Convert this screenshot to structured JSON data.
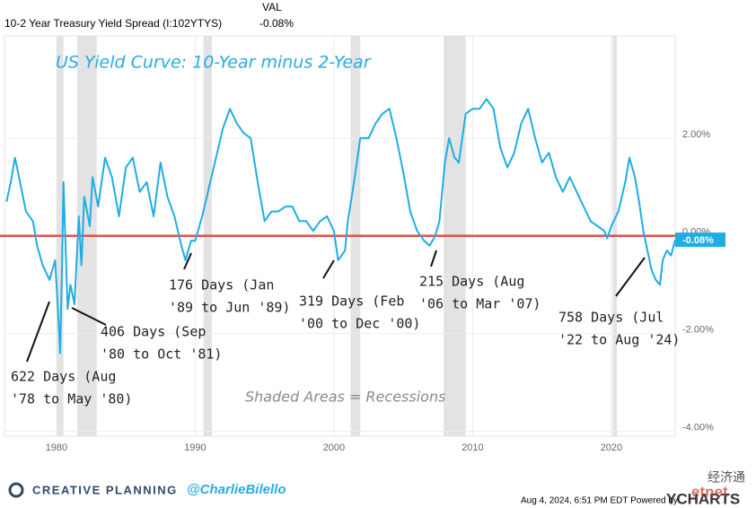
{
  "header": {
    "series_label": "10-2 Year Treasury Yield Spread (I:102YTYS)",
    "val_heading": "VAL",
    "val": "-0.08%"
  },
  "chart_data": {
    "type": "line",
    "title": "US Yield Curve: 10-Year minus 2-Year",
    "note": "Shaded Areas = Recessions",
    "x": [
      1976.4,
      1976.7,
      1977.0,
      1977.3,
      1977.8,
      1978.3,
      1978.6,
      1979.0,
      1979.5,
      1979.9,
      1980.1,
      1980.26,
      1980.4,
      1980.5,
      1980.8,
      1981.0,
      1981.3,
      1981.6,
      1981.8,
      1982.0,
      1982.4,
      1982.6,
      1983.0,
      1983.5,
      1984.0,
      1984.5,
      1985.0,
      1985.5,
      1986.0,
      1986.5,
      1987.0,
      1987.5,
      1988.0,
      1988.5,
      1989.0,
      1989.3,
      1989.7,
      1990.0,
      1990.5,
      1991.0,
      1991.5,
      1992.0,
      1992.5,
      1993.0,
      1993.5,
      1994.0,
      1994.5,
      1995.0,
      1995.5,
      1996.0,
      1996.5,
      1997.0,
      1997.5,
      1998.0,
      1998.5,
      1999.0,
      1999.5,
      2000.0,
      2000.3,
      2000.8,
      2001.0,
      2001.5,
      2001.9,
      2002.5,
      2003.0,
      2003.5,
      2004.0,
      2004.5,
      2005.0,
      2005.5,
      2006.0,
      2006.5,
      2006.9,
      2007.3,
      2007.6,
      2008.0,
      2008.3,
      2008.7,
      2009.0,
      2009.5,
      2010.0,
      2010.5,
      2011.0,
      2011.5,
      2012.0,
      2012.5,
      2013.0,
      2013.5,
      2014.0,
      2014.5,
      2015.0,
      2015.5,
      2016.0,
      2016.5,
      2017.0,
      2017.5,
      2018.0,
      2018.5,
      2019.0,
      2019.5,
      2019.7,
      2020.0,
      2020.5,
      2021.0,
      2021.3,
      2021.7,
      2022.0,
      2022.3,
      2022.6,
      2022.9,
      2023.2,
      2023.5,
      2023.7,
      2024.0,
      2024.3,
      2024.6
    ],
    "series": [
      {
        "name": "10-2 Year Treasury Yield Spread",
        "color": "#1fade4",
        "values": [
          0.7,
          1.1,
          1.6,
          1.2,
          0.5,
          0.3,
          -0.2,
          -0.6,
          -0.9,
          -0.5,
          -1.5,
          -2.4,
          -0.6,
          1.1,
          -1.5,
          -1.0,
          -1.4,
          0.4,
          -0.6,
          0.8,
          0.2,
          1.2,
          0.6,
          1.6,
          1.2,
          0.4,
          1.4,
          1.6,
          0.9,
          1.1,
          0.4,
          1.5,
          0.8,
          0.4,
          -0.2,
          -0.5,
          -0.1,
          -0.1,
          0.4,
          1.0,
          1.6,
          2.2,
          2.6,
          2.3,
          2.1,
          2.0,
          1.1,
          0.3,
          0.5,
          0.5,
          0.6,
          0.6,
          0.3,
          0.3,
          0.1,
          0.3,
          0.4,
          0.1,
          -0.5,
          -0.3,
          0.3,
          1.2,
          2.0,
          2.0,
          2.3,
          2.5,
          2.6,
          2.0,
          1.3,
          0.5,
          0.1,
          -0.1,
          -0.2,
          0.0,
          0.3,
          1.5,
          2.0,
          1.6,
          1.5,
          2.5,
          2.6,
          2.6,
          2.8,
          2.6,
          1.8,
          1.4,
          1.7,
          2.3,
          2.6,
          2.0,
          1.5,
          1.7,
          1.2,
          0.9,
          1.2,
          0.9,
          0.6,
          0.3,
          0.2,
          0.1,
          -0.05,
          0.2,
          0.5,
          1.1,
          1.6,
          1.2,
          0.7,
          0.1,
          -0.3,
          -0.7,
          -0.9,
          -1.0,
          -0.5,
          -0.3,
          -0.4,
          -0.08
        ]
      }
    ],
    "last_label": "-0.08%",
    "xlim": [
      1976.25,
      2024.6
    ],
    "xticks": [
      1980,
      1990,
      2000,
      2010,
      2020
    ],
    "ylim": [
      -4.1,
      4.0
    ],
    "yticks": [
      {
        "value": 2,
        "label": "2.00%"
      },
      {
        "value": 0,
        "label": "0.00%"
      },
      {
        "value": -2,
        "label": "-2.00%"
      },
      {
        "value": -4,
        "label": "-4.00%"
      }
    ],
    "recessions": [
      [
        1980.0,
        1980.5
      ],
      [
        1981.5,
        1982.9
      ],
      [
        1990.6,
        1991.2
      ],
      [
        2001.2,
        2001.9
      ],
      [
        2007.9,
        2009.5
      ],
      [
        2020.1,
        2020.4
      ]
    ],
    "zero_line": {
      "value": 0,
      "color": "#e0523f"
    },
    "annotations": [
      [
        "622 Days (Aug",
        "'78 to May '80)"
      ],
      [
        "406 Days (Sep",
        "'80 to Oct '81)"
      ],
      [
        "176 Days (Jan",
        "'89 to Jun '89)"
      ],
      [
        "319 Days (Feb",
        "'00 to Dec '00)"
      ],
      [
        "215 Days (Aug",
        "'06 to Mar '07)"
      ],
      [
        "758 Days (Jul",
        "'22 to Aug '24)"
      ]
    ]
  },
  "footer": {
    "brand": "CREATIVE PLANNING",
    "handle": "@CharlieBilello",
    "timestamp": "Aug 4, 2024, 6:51 PM EDT Powered by",
    "provider": "YCHARTS",
    "watermark": "经济通",
    "watermark2": "etnet"
  }
}
